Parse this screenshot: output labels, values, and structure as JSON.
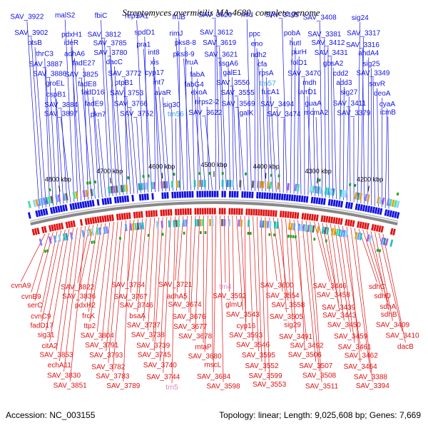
{
  "title": "Streptomyces avermitilis MA-4680, complete genome",
  "accession": "Accession: NC_003155",
  "topology": "Topology: linear; Length: 9,025,608 bp; Genes: 7,669",
  "genome_length_bp": 9025608,
  "colors": {
    "forward_strand": "#1010e0",
    "reverse_strand": "#e01010",
    "rna_label": "#40a0e0",
    "rna_label_reverse": "#e080c0",
    "backbone": "#888888",
    "tick_mark": "#20a020"
  },
  "kbp_ticks": [
    {
      "pos_kbp": 4800,
      "label": "4800 kbp"
    },
    {
      "pos_kbp": 4700,
      "label": "4700 kbp"
    },
    {
      "pos_kbp": 4600,
      "label": "4600 kbp"
    },
    {
      "pos_kbp": 4500,
      "label": "4500 kbp"
    },
    {
      "pos_kbp": 4400,
      "label": "4400 kbp"
    },
    {
      "pos_kbp": 4300,
      "label": "4300 kbp"
    },
    {
      "pos_kbp": 4200,
      "label": "4200 kbp"
    }
  ],
  "forward_genes": [
    "SAV_3922",
    "SAV_3902",
    "otsB",
    "thrC3",
    "SAV_3887",
    "SAV_3886",
    "groEL",
    "cspB1",
    "SAV_3884",
    "SAV_3897",
    "malS2",
    "pdxH1",
    "ideR",
    "adhA6",
    "fadE27",
    "SAV_3825",
    "fadE8",
    "fadD16",
    "fadE9",
    "pkn7",
    "fbiC",
    "SAV_3812",
    "SAV_3785",
    "SAV_3780",
    "dacC",
    "SAV_3772",
    "ptpB1",
    "SAV_3753",
    "SAV_3766",
    "SAV_3752",
    "repSA1",
    "spdD1",
    "pra1",
    "int8",
    "xis",
    "cyp17",
    "int7",
    "avaR",
    "sig30",
    "trn56",
    "fruB",
    "rimJ",
    "pks8-8",
    "pks8-9",
    "fruA",
    "fabA",
    "fabG4",
    "exoA",
    "nrps2-2",
    "SAV_3622",
    "SAV_3629",
    "SAV_3612",
    "SAV_3619",
    "SAV_3621",
    "ssgA6",
    "galE1",
    "SAV_3556",
    "SAV_3555",
    "SAV_3569",
    "galK",
    "mfd",
    "ppc",
    "eno",
    "ndh2",
    "cfa",
    "rpsA",
    "trn57",
    "fucA1",
    "SAV_3494",
    "SAV_3474",
    "SAV_3495",
    "pobA",
    "hutI",
    "purH",
    "folD1",
    "SAV_3470",
    "mdh",
    "uvrD1",
    "guaA",
    "mcmA2",
    "SAV_3408",
    "SAV_3381",
    "SAV_3412",
    "SAV_3431",
    "gbsA2",
    "cdd2",
    "add3",
    "sig27",
    "SAV_3411",
    "SAV_3379",
    "sig24",
    "SAV_3317",
    "SAV_3316",
    "ahdA4",
    "sig25",
    "SAV_3349",
    "savR",
    "deoA",
    "cyaA",
    "icmB"
  ],
  "reverse_genes": [
    "cvnA9",
    "cvnB9",
    "serC",
    "cvnC9",
    "fadD17",
    "sig31",
    "citA2",
    "SAV_3853",
    "echA11",
    "SAV_3830",
    "SAV_3851",
    "SAV_3822",
    "SAV_3836",
    "pdxH2",
    "frcK",
    "ttp2",
    "SAV_3804",
    "SAV_3791",
    "SAV_3793",
    "SAV_3782",
    "SAV_3783",
    "SAV_3789",
    "SAV_3784",
    "SAV_3767",
    "SAV_3746",
    "bsaA",
    "SAV_3737",
    "SAV_3738",
    "SAV_3739",
    "SAV_3745",
    "SAV_3740",
    "SAV_3744",
    "trn5",
    "SAV_3721",
    "adhA5",
    "SAV_3674",
    "SAV_3676",
    "SAV_3677",
    "SAV_3678",
    "mtaP",
    "SAV_3680",
    "mscL",
    "SAV_3684",
    "SAV_3598",
    "trn4",
    "SAV_3592",
    "glmU",
    "SAV_3543",
    "cyp16",
    "SAV_3593",
    "SAV_3546",
    "SAV_3595",
    "SAV_3552",
    "SAV_3599",
    "SAV_3553",
    "SAV_3600",
    "SAV_3554",
    "SAV_3558",
    "SAV_3505",
    "sig29",
    "SAV_3491",
    "SAV_3492",
    "SAV_3506",
    "SAV_3507",
    "SAV_3508",
    "SAV_3511",
    "SAV_3446",
    "SAV_3458",
    "SAV_3439",
    "SAV_3443",
    "SAV_3450",
    "SAV_3459",
    "SAV_3461",
    "SAV_3462",
    "SAV_3464",
    "SAV_3388",
    "SAV_3394",
    "sdhC",
    "sdhD",
    "sdhA",
    "sdhB",
    "SAV_3409",
    "SAV_3410",
    "dacB"
  ]
}
